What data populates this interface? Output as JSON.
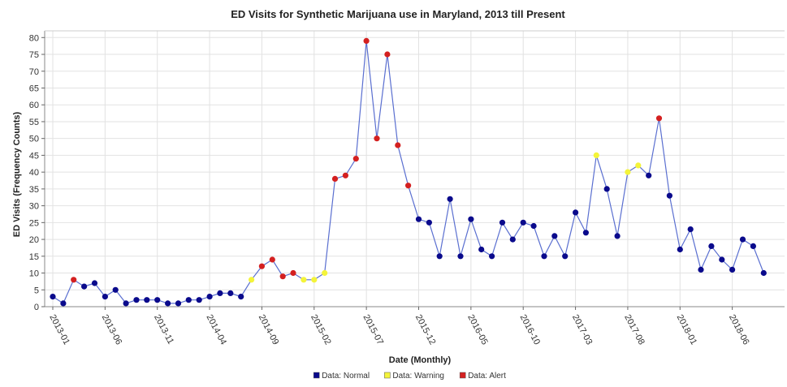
{
  "chart_data": {
    "type": "line",
    "title": "ED Visits for Synthetic Marijuana use in Maryland, 2013 till Present",
    "xlabel": "Date (Monthly)",
    "ylabel": "ED Visits (Frequency Counts)",
    "ylim": [
      0,
      82
    ],
    "yticks": [
      0,
      5,
      10,
      15,
      20,
      25,
      30,
      35,
      40,
      45,
      50,
      55,
      60,
      65,
      70,
      75,
      80
    ],
    "xlim": [
      "2013-01",
      "2018-11"
    ],
    "xticks": [
      "2013-01",
      "2013-06",
      "2013-11",
      "2014-04",
      "2014-09",
      "2015-02",
      "2015-07",
      "2015-12",
      "2016-05",
      "2016-10",
      "2017-03",
      "2017-08",
      "2018-01",
      "2018-06"
    ],
    "grid": true,
    "line_color": "#5a6fd0",
    "legend_position": "bottom",
    "legend": [
      {
        "key": "Normal",
        "label": "Data: Normal",
        "color": "#0a0a8c"
      },
      {
        "key": "Warning",
        "label": "Data: Warning",
        "color": "#f4f43a"
      },
      {
        "key": "Alert",
        "label": "Data: Alert",
        "color": "#d42020"
      }
    ],
    "series": [
      {
        "x": [
          "2013-01",
          "2013-02",
          "2013-03",
          "2013-04",
          "2013-05",
          "2013-06",
          "2013-07",
          "2013-08",
          "2013-09",
          "2013-10",
          "2013-11",
          "2013-12",
          "2014-01",
          "2014-02",
          "2014-03",
          "2014-04",
          "2014-05",
          "2014-06",
          "2014-07",
          "2014-08",
          "2014-09",
          "2014-10",
          "2014-11",
          "2014-12",
          "2015-01",
          "2015-02",
          "2015-03",
          "2015-04",
          "2015-05",
          "2015-06",
          "2015-07",
          "2015-08",
          "2015-09",
          "2015-10",
          "2015-11",
          "2015-12",
          "2016-01",
          "2016-02",
          "2016-03",
          "2016-04",
          "2016-05",
          "2016-06",
          "2016-07",
          "2016-08",
          "2016-09",
          "2016-10",
          "2016-11",
          "2016-12",
          "2017-01",
          "2017-02",
          "2017-03",
          "2017-04",
          "2017-05",
          "2017-06",
          "2017-07",
          "2017-08",
          "2017-09",
          "2017-10",
          "2017-11",
          "2017-12",
          "2018-01",
          "2018-02",
          "2018-03",
          "2018-04",
          "2018-05",
          "2018-06",
          "2018-07",
          "2018-08",
          "2018-09"
        ],
        "values": [
          3,
          1,
          8,
          6,
          7,
          3,
          5,
          1,
          2,
          2,
          2,
          1,
          1,
          2,
          2,
          3,
          4,
          4,
          3,
          8,
          12,
          14,
          9,
          10,
          8,
          8,
          10,
          38,
          39,
          44,
          79,
          50,
          75,
          48,
          36,
          26,
          25,
          15,
          32,
          15,
          26,
          17,
          15,
          25,
          20,
          25,
          24,
          15,
          21,
          15,
          28,
          22,
          45,
          35,
          21,
          40,
          42,
          39,
          56,
          33,
          17,
          23,
          11,
          18,
          14,
          11,
          20,
          18,
          10
        ],
        "status": [
          "Normal",
          "Normal",
          "Alert",
          "Normal",
          "Normal",
          "Normal",
          "Normal",
          "Normal",
          "Normal",
          "Normal",
          "Normal",
          "Normal",
          "Normal",
          "Normal",
          "Normal",
          "Normal",
          "Normal",
          "Normal",
          "Normal",
          "Warning",
          "Alert",
          "Alert",
          "Alert",
          "Alert",
          "Warning",
          "Warning",
          "Warning",
          "Alert",
          "Alert",
          "Alert",
          "Alert",
          "Alert",
          "Alert",
          "Alert",
          "Alert",
          "Normal",
          "Normal",
          "Normal",
          "Normal",
          "Normal",
          "Normal",
          "Normal",
          "Normal",
          "Normal",
          "Normal",
          "Normal",
          "Normal",
          "Normal",
          "Normal",
          "Normal",
          "Normal",
          "Normal",
          "Warning",
          "Normal",
          "Normal",
          "Warning",
          "Warning",
          "Normal",
          "Alert",
          "Normal",
          "Normal",
          "Normal",
          "Normal",
          "Normal",
          "Normal",
          "Normal",
          "Normal",
          "Normal",
          "Normal"
        ]
      }
    ]
  }
}
